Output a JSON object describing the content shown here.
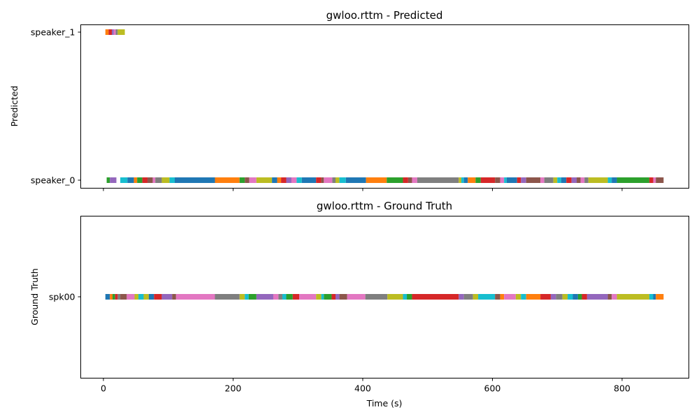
{
  "chart_data": [
    {
      "type": "timeline",
      "title": "gwloo.rttm - Predicted",
      "ylabel": "Predicted",
      "xlabel": "",
      "xlim": [
        -35,
        903
      ],
      "xticks": [
        0,
        200,
        400,
        600,
        800
      ],
      "show_xtick_labels": false,
      "grid": false,
      "rows": [
        "speaker_0",
        "speaker_1"
      ],
      "palette": [
        "#1f77b4",
        "#ff7f0e",
        "#2ca02c",
        "#d62728",
        "#9467bd",
        "#8c564b",
        "#e377c2",
        "#7f7f7f",
        "#bcbd22",
        "#17becf"
      ],
      "segments": [
        {
          "row": "speaker_1",
          "start": 3,
          "end": 8,
          "color": "#ff7f0e"
        },
        {
          "row": "speaker_1",
          "start": 8,
          "end": 13,
          "color": "#d62728"
        },
        {
          "row": "speaker_1",
          "start": 13,
          "end": 16,
          "color": "#9467bd"
        },
        {
          "row": "speaker_1",
          "start": 16,
          "end": 19,
          "color": "#e377c2"
        },
        {
          "row": "speaker_1",
          "start": 19,
          "end": 22,
          "color": "#7f7f7f"
        },
        {
          "row": "speaker_1",
          "start": 22,
          "end": 33,
          "color": "#bcbd22"
        },
        {
          "row": "speaker_0",
          "start": 5,
          "end": 10,
          "color": "#2ca02c"
        },
        {
          "row": "speaker_0",
          "start": 10,
          "end": 20,
          "color": "#9467bd"
        },
        {
          "row": "speaker_0",
          "start": 26,
          "end": 37,
          "color": "#17becf"
        },
        {
          "row": "speaker_0",
          "start": 37,
          "end": 47,
          "color": "#1f77b4"
        },
        {
          "row": "speaker_0",
          "start": 47,
          "end": 52,
          "color": "#ff7f0e"
        },
        {
          "row": "speaker_0",
          "start": 52,
          "end": 60,
          "color": "#2ca02c"
        },
        {
          "row": "speaker_0",
          "start": 60,
          "end": 68,
          "color": "#d62728"
        },
        {
          "row": "speaker_0",
          "start": 68,
          "end": 76,
          "color": "#8c564b"
        },
        {
          "row": "speaker_0",
          "start": 76,
          "end": 80,
          "color": "#e377c2"
        },
        {
          "row": "speaker_0",
          "start": 80,
          "end": 90,
          "color": "#7f7f7f"
        },
        {
          "row": "speaker_0",
          "start": 90,
          "end": 102,
          "color": "#bcbd22"
        },
        {
          "row": "speaker_0",
          "start": 102,
          "end": 110,
          "color": "#17becf"
        },
        {
          "row": "speaker_0",
          "start": 110,
          "end": 172,
          "color": "#1f77b4"
        },
        {
          "row": "speaker_0",
          "start": 172,
          "end": 210,
          "color": "#ff7f0e"
        },
        {
          "row": "speaker_0",
          "start": 210,
          "end": 218,
          "color": "#2ca02c"
        },
        {
          "row": "speaker_0",
          "start": 218,
          "end": 225,
          "color": "#8c564b"
        },
        {
          "row": "speaker_0",
          "start": 225,
          "end": 236,
          "color": "#e377c2"
        },
        {
          "row": "speaker_0",
          "start": 236,
          "end": 260,
          "color": "#bcbd22"
        },
        {
          "row": "speaker_0",
          "start": 260,
          "end": 268,
          "color": "#1f77b4"
        },
        {
          "row": "speaker_0",
          "start": 268,
          "end": 274,
          "color": "#ff7f0e"
        },
        {
          "row": "speaker_0",
          "start": 274,
          "end": 282,
          "color": "#d62728"
        },
        {
          "row": "speaker_0",
          "start": 282,
          "end": 290,
          "color": "#9467bd"
        },
        {
          "row": "speaker_0",
          "start": 290,
          "end": 298,
          "color": "#e377c2"
        },
        {
          "row": "speaker_0",
          "start": 298,
          "end": 306,
          "color": "#17becf"
        },
        {
          "row": "speaker_0",
          "start": 306,
          "end": 328,
          "color": "#1f77b4"
        },
        {
          "row": "speaker_0",
          "start": 328,
          "end": 336,
          "color": "#d62728"
        },
        {
          "row": "speaker_0",
          "start": 336,
          "end": 340,
          "color": "#8c564b"
        },
        {
          "row": "speaker_0",
          "start": 340,
          "end": 353,
          "color": "#e377c2"
        },
        {
          "row": "speaker_0",
          "start": 353,
          "end": 358,
          "color": "#7f7f7f"
        },
        {
          "row": "speaker_0",
          "start": 358,
          "end": 364,
          "color": "#bcbd22"
        },
        {
          "row": "speaker_0",
          "start": 364,
          "end": 374,
          "color": "#17becf"
        },
        {
          "row": "speaker_0",
          "start": 374,
          "end": 405,
          "color": "#1f77b4"
        },
        {
          "row": "speaker_0",
          "start": 405,
          "end": 437,
          "color": "#ff7f0e"
        },
        {
          "row": "speaker_0",
          "start": 437,
          "end": 462,
          "color": "#2ca02c"
        },
        {
          "row": "speaker_0",
          "start": 462,
          "end": 470,
          "color": "#d62728"
        },
        {
          "row": "speaker_0",
          "start": 470,
          "end": 476,
          "color": "#8c564b"
        },
        {
          "row": "speaker_0",
          "start": 476,
          "end": 484,
          "color": "#e377c2"
        },
        {
          "row": "speaker_0",
          "start": 484,
          "end": 548,
          "color": "#7f7f7f"
        },
        {
          "row": "speaker_0",
          "start": 548,
          "end": 552,
          "color": "#bcbd22"
        },
        {
          "row": "speaker_0",
          "start": 552,
          "end": 556,
          "color": "#17becf"
        },
        {
          "row": "speaker_0",
          "start": 556,
          "end": 562,
          "color": "#1f77b4"
        },
        {
          "row": "speaker_0",
          "start": 562,
          "end": 574,
          "color": "#ff7f0e"
        },
        {
          "row": "speaker_0",
          "start": 574,
          "end": 582,
          "color": "#2ca02c"
        },
        {
          "row": "speaker_0",
          "start": 582,
          "end": 604,
          "color": "#d62728"
        },
        {
          "row": "speaker_0",
          "start": 604,
          "end": 612,
          "color": "#8c564b"
        },
        {
          "row": "speaker_0",
          "start": 612,
          "end": 618,
          "color": "#e377c2"
        },
        {
          "row": "speaker_0",
          "start": 618,
          "end": 622,
          "color": "#17becf"
        },
        {
          "row": "speaker_0",
          "start": 622,
          "end": 638,
          "color": "#1f77b4"
        },
        {
          "row": "speaker_0",
          "start": 638,
          "end": 644,
          "color": "#d62728"
        },
        {
          "row": "speaker_0",
          "start": 644,
          "end": 652,
          "color": "#9467bd"
        },
        {
          "row": "speaker_0",
          "start": 652,
          "end": 674,
          "color": "#8c564b"
        },
        {
          "row": "speaker_0",
          "start": 674,
          "end": 680,
          "color": "#e377c2"
        },
        {
          "row": "speaker_0",
          "start": 680,
          "end": 694,
          "color": "#7f7f7f"
        },
        {
          "row": "speaker_0",
          "start": 694,
          "end": 700,
          "color": "#bcbd22"
        },
        {
          "row": "speaker_0",
          "start": 700,
          "end": 706,
          "color": "#17becf"
        },
        {
          "row": "speaker_0",
          "start": 706,
          "end": 714,
          "color": "#1f77b4"
        },
        {
          "row": "speaker_0",
          "start": 714,
          "end": 722,
          "color": "#d62728"
        },
        {
          "row": "speaker_0",
          "start": 722,
          "end": 730,
          "color": "#9467bd"
        },
        {
          "row": "speaker_0",
          "start": 730,
          "end": 736,
          "color": "#8c564b"
        },
        {
          "row": "speaker_0",
          "start": 736,
          "end": 742,
          "color": "#e377c2"
        },
        {
          "row": "speaker_0",
          "start": 742,
          "end": 748,
          "color": "#7f7f7f"
        },
        {
          "row": "speaker_0",
          "start": 748,
          "end": 778,
          "color": "#bcbd22"
        },
        {
          "row": "speaker_0",
          "start": 778,
          "end": 784,
          "color": "#17becf"
        },
        {
          "row": "speaker_0",
          "start": 784,
          "end": 792,
          "color": "#1f77b4"
        },
        {
          "row": "speaker_0",
          "start": 792,
          "end": 842,
          "color": "#2ca02c"
        },
        {
          "row": "speaker_0",
          "start": 842,
          "end": 848,
          "color": "#d62728"
        },
        {
          "row": "speaker_0",
          "start": 848,
          "end": 852,
          "color": "#e377c2"
        },
        {
          "row": "speaker_0",
          "start": 852,
          "end": 864,
          "color": "#8c564b"
        }
      ]
    },
    {
      "type": "timeline",
      "title": "gwloo.rttm - Ground Truth",
      "ylabel": "Ground Truth",
      "xlabel": "Time (s)",
      "xlim": [
        -35,
        903
      ],
      "xticks": [
        0,
        200,
        400,
        600,
        800
      ],
      "show_xtick_labels": true,
      "grid": false,
      "rows": [
        "spk00"
      ],
      "segments": [
        {
          "row": "spk00",
          "start": 3,
          "end": 10,
          "color": "#1f77b4"
        },
        {
          "row": "spk00",
          "start": 10,
          "end": 14,
          "color": "#ff7f0e"
        },
        {
          "row": "spk00",
          "start": 14,
          "end": 18,
          "color": "#2ca02c"
        },
        {
          "row": "spk00",
          "start": 18,
          "end": 22,
          "color": "#d62728"
        },
        {
          "row": "spk00",
          "start": 22,
          "end": 26,
          "color": "#7f7f7f"
        },
        {
          "row": "spk00",
          "start": 26,
          "end": 36,
          "color": "#8c564b"
        },
        {
          "row": "spk00",
          "start": 36,
          "end": 48,
          "color": "#e377c2"
        },
        {
          "row": "spk00",
          "start": 48,
          "end": 54,
          "color": "#bcbd22"
        },
        {
          "row": "spk00",
          "start": 54,
          "end": 62,
          "color": "#17becf"
        },
        {
          "row": "spk00",
          "start": 62,
          "end": 70,
          "color": "#bcbd22"
        },
        {
          "row": "spk00",
          "start": 70,
          "end": 78,
          "color": "#1f77b4"
        },
        {
          "row": "spk00",
          "start": 78,
          "end": 90,
          "color": "#d62728"
        },
        {
          "row": "spk00",
          "start": 90,
          "end": 106,
          "color": "#9467bd"
        },
        {
          "row": "spk00",
          "start": 106,
          "end": 112,
          "color": "#8c564b"
        },
        {
          "row": "spk00",
          "start": 112,
          "end": 172,
          "color": "#e377c2"
        },
        {
          "row": "spk00",
          "start": 172,
          "end": 210,
          "color": "#7f7f7f"
        },
        {
          "row": "spk00",
          "start": 210,
          "end": 218,
          "color": "#bcbd22"
        },
        {
          "row": "spk00",
          "start": 218,
          "end": 224,
          "color": "#17becf"
        },
        {
          "row": "spk00",
          "start": 224,
          "end": 236,
          "color": "#2ca02c"
        },
        {
          "row": "spk00",
          "start": 236,
          "end": 262,
          "color": "#9467bd"
        },
        {
          "row": "spk00",
          "start": 262,
          "end": 270,
          "color": "#e377c2"
        },
        {
          "row": "spk00",
          "start": 270,
          "end": 276,
          "color": "#7f7f7f"
        },
        {
          "row": "spk00",
          "start": 276,
          "end": 282,
          "color": "#17becf"
        },
        {
          "row": "spk00",
          "start": 282,
          "end": 292,
          "color": "#2ca02c"
        },
        {
          "row": "spk00",
          "start": 292,
          "end": 302,
          "color": "#d62728"
        },
        {
          "row": "spk00",
          "start": 302,
          "end": 328,
          "color": "#e377c2"
        },
        {
          "row": "spk00",
          "start": 328,
          "end": 336,
          "color": "#bcbd22"
        },
        {
          "row": "spk00",
          "start": 336,
          "end": 340,
          "color": "#17becf"
        },
        {
          "row": "spk00",
          "start": 340,
          "end": 352,
          "color": "#2ca02c"
        },
        {
          "row": "spk00",
          "start": 352,
          "end": 358,
          "color": "#d62728"
        },
        {
          "row": "spk00",
          "start": 358,
          "end": 364,
          "color": "#9467bd"
        },
        {
          "row": "spk00",
          "start": 364,
          "end": 376,
          "color": "#8c564b"
        },
        {
          "row": "spk00",
          "start": 376,
          "end": 404,
          "color": "#e377c2"
        },
        {
          "row": "spk00",
          "start": 404,
          "end": 438,
          "color": "#7f7f7f"
        },
        {
          "row": "spk00",
          "start": 438,
          "end": 462,
          "color": "#bcbd22"
        },
        {
          "row": "spk00",
          "start": 462,
          "end": 468,
          "color": "#17becf"
        },
        {
          "row": "spk00",
          "start": 468,
          "end": 476,
          "color": "#2ca02c"
        },
        {
          "row": "spk00",
          "start": 476,
          "end": 548,
          "color": "#d62728"
        },
        {
          "row": "spk00",
          "start": 548,
          "end": 556,
          "color": "#9467bd"
        },
        {
          "row": "spk00",
          "start": 556,
          "end": 570,
          "color": "#7f7f7f"
        },
        {
          "row": "spk00",
          "start": 570,
          "end": 578,
          "color": "#bcbd22"
        },
        {
          "row": "spk00",
          "start": 578,
          "end": 604,
          "color": "#17becf"
        },
        {
          "row": "spk00",
          "start": 604,
          "end": 612,
          "color": "#8c564b"
        },
        {
          "row": "spk00",
          "start": 612,
          "end": 618,
          "color": "#ff7f0e"
        },
        {
          "row": "spk00",
          "start": 618,
          "end": 636,
          "color": "#e377c2"
        },
        {
          "row": "spk00",
          "start": 636,
          "end": 644,
          "color": "#bcbd22"
        },
        {
          "row": "spk00",
          "start": 644,
          "end": 652,
          "color": "#17becf"
        },
        {
          "row": "spk00",
          "start": 652,
          "end": 674,
          "color": "#ff7f0e"
        },
        {
          "row": "spk00",
          "start": 674,
          "end": 690,
          "color": "#d62728"
        },
        {
          "row": "spk00",
          "start": 690,
          "end": 698,
          "color": "#9467bd"
        },
        {
          "row": "spk00",
          "start": 698,
          "end": 708,
          "color": "#7f7f7f"
        },
        {
          "row": "spk00",
          "start": 708,
          "end": 716,
          "color": "#bcbd22"
        },
        {
          "row": "spk00",
          "start": 716,
          "end": 724,
          "color": "#17becf"
        },
        {
          "row": "spk00",
          "start": 724,
          "end": 732,
          "color": "#1f77b4"
        },
        {
          "row": "spk00",
          "start": 732,
          "end": 738,
          "color": "#2ca02c"
        },
        {
          "row": "spk00",
          "start": 738,
          "end": 746,
          "color": "#d62728"
        },
        {
          "row": "spk00",
          "start": 746,
          "end": 778,
          "color": "#9467bd"
        },
        {
          "row": "spk00",
          "start": 778,
          "end": 784,
          "color": "#8c564b"
        },
        {
          "row": "spk00",
          "start": 784,
          "end": 792,
          "color": "#e377c2"
        },
        {
          "row": "spk00",
          "start": 792,
          "end": 842,
          "color": "#bcbd22"
        },
        {
          "row": "spk00",
          "start": 842,
          "end": 848,
          "color": "#17becf"
        },
        {
          "row": "spk00",
          "start": 848,
          "end": 852,
          "color": "#1f77b4"
        },
        {
          "row": "spk00",
          "start": 852,
          "end": 864,
          "color": "#ff7f0e"
        }
      ]
    }
  ]
}
